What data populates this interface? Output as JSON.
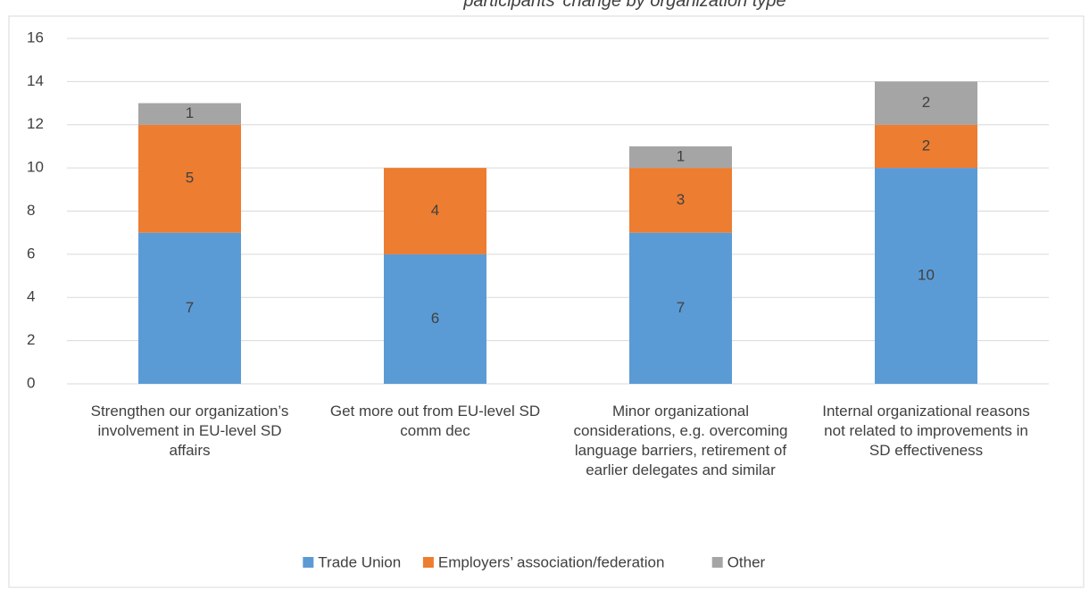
{
  "chart_data": {
    "type": "stacked_bar",
    "title": "participants’ change by organization type",
    "categories": [
      "Strengthen our organization’s involvement in EU-level SD affairs",
      "Get more out from EU-level SD comm dec",
      "Minor organizational considerations, e.g. overcoming language barriers, retirement of earlier delegates and similar",
      "Internal organizational reasons not related to improvements in SD effectiveness"
    ],
    "series": [
      {
        "name": "Trade Union",
        "color": "#5b9bd5",
        "values": [
          7,
          6,
          7,
          10
        ]
      },
      {
        "name": "Employers’ association/federation",
        "color": "#ed7d31",
        "values": [
          5,
          4,
          3,
          2
        ]
      },
      {
        "name": "Other",
        "color": "#a5a5a5",
        "values": [
          1,
          0,
          1,
          2
        ]
      }
    ],
    "ylim": [
      0,
      16
    ],
    "yticks": [
      0,
      2,
      4,
      6,
      8,
      10,
      12,
      14,
      16
    ],
    "grid": true,
    "legend": "bottom"
  }
}
